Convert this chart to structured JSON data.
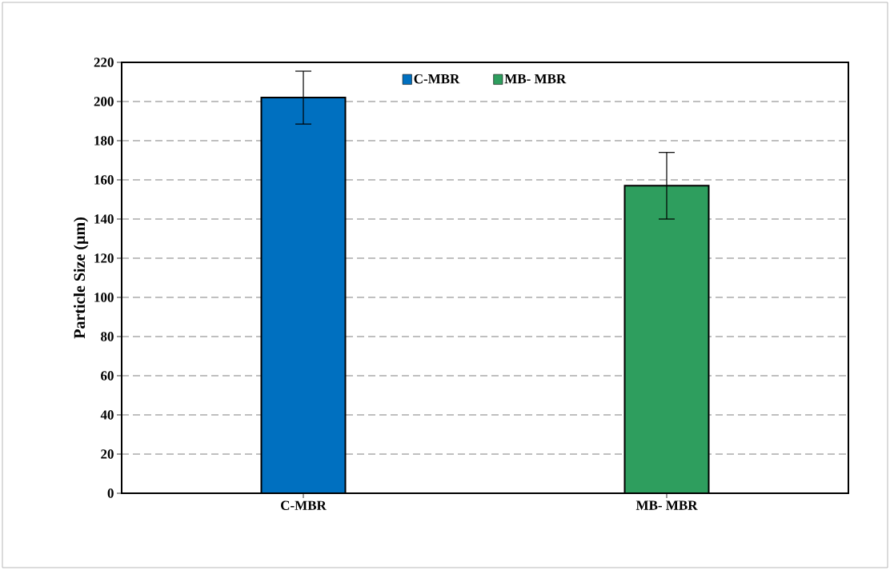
{
  "chart_data": {
    "type": "bar",
    "ylabel": "Particle Size (µm)",
    "categories": [
      "C-MBR",
      "MB- MBR"
    ],
    "series": [
      {
        "name": "C-MBR",
        "color": "#0070c0",
        "values": [
          202,
          null
        ],
        "errors": [
          13.5,
          null
        ]
      },
      {
        "name": "MB- MBR",
        "color": "#2e9e5e",
        "values": [
          null,
          157
        ],
        "errors": [
          null,
          17
        ]
      }
    ],
    "ylim": [
      0,
      220
    ],
    "yticks": [
      0,
      20,
      40,
      60,
      80,
      100,
      120,
      140,
      160,
      180,
      200,
      220
    ],
    "grid": "y",
    "legend": "top"
  }
}
